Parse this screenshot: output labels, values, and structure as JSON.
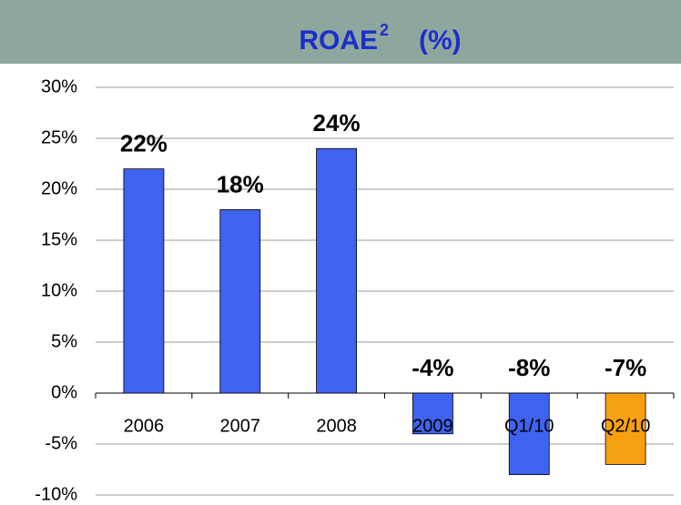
{
  "chart_data": {
    "type": "bar",
    "title": "ROAE",
    "title_superscript": "2",
    "title_unit": "(%)",
    "categories": [
      "2006",
      "2007",
      "2008",
      "2009",
      "Q1/10",
      "Q2/10"
    ],
    "values": [
      22,
      18,
      24,
      -4,
      -8,
      -7
    ],
    "value_labels": [
      "22%",
      "18%",
      "24%",
      "-4%",
      "-8%",
      "-7%"
    ],
    "colors": [
      "#3f62ef",
      "#3f62ef",
      "#3f62ef",
      "#3f62ef",
      "#3f62ef",
      "#f7a011"
    ],
    "ylim": [
      -10,
      30
    ],
    "yticks": [
      {
        "value": -10,
        "label": "-10%"
      },
      {
        "value": -5,
        "label": "-5%"
      },
      {
        "value": 0,
        "label": "0%"
      },
      {
        "value": 5,
        "label": "5%"
      },
      {
        "value": 10,
        "label": "10%"
      },
      {
        "value": 15,
        "label": "15%"
      },
      {
        "value": 20,
        "label": "20%"
      },
      {
        "value": 25,
        "label": "25%"
      },
      {
        "value": 30,
        "label": "30%"
      }
    ],
    "grid": true
  }
}
